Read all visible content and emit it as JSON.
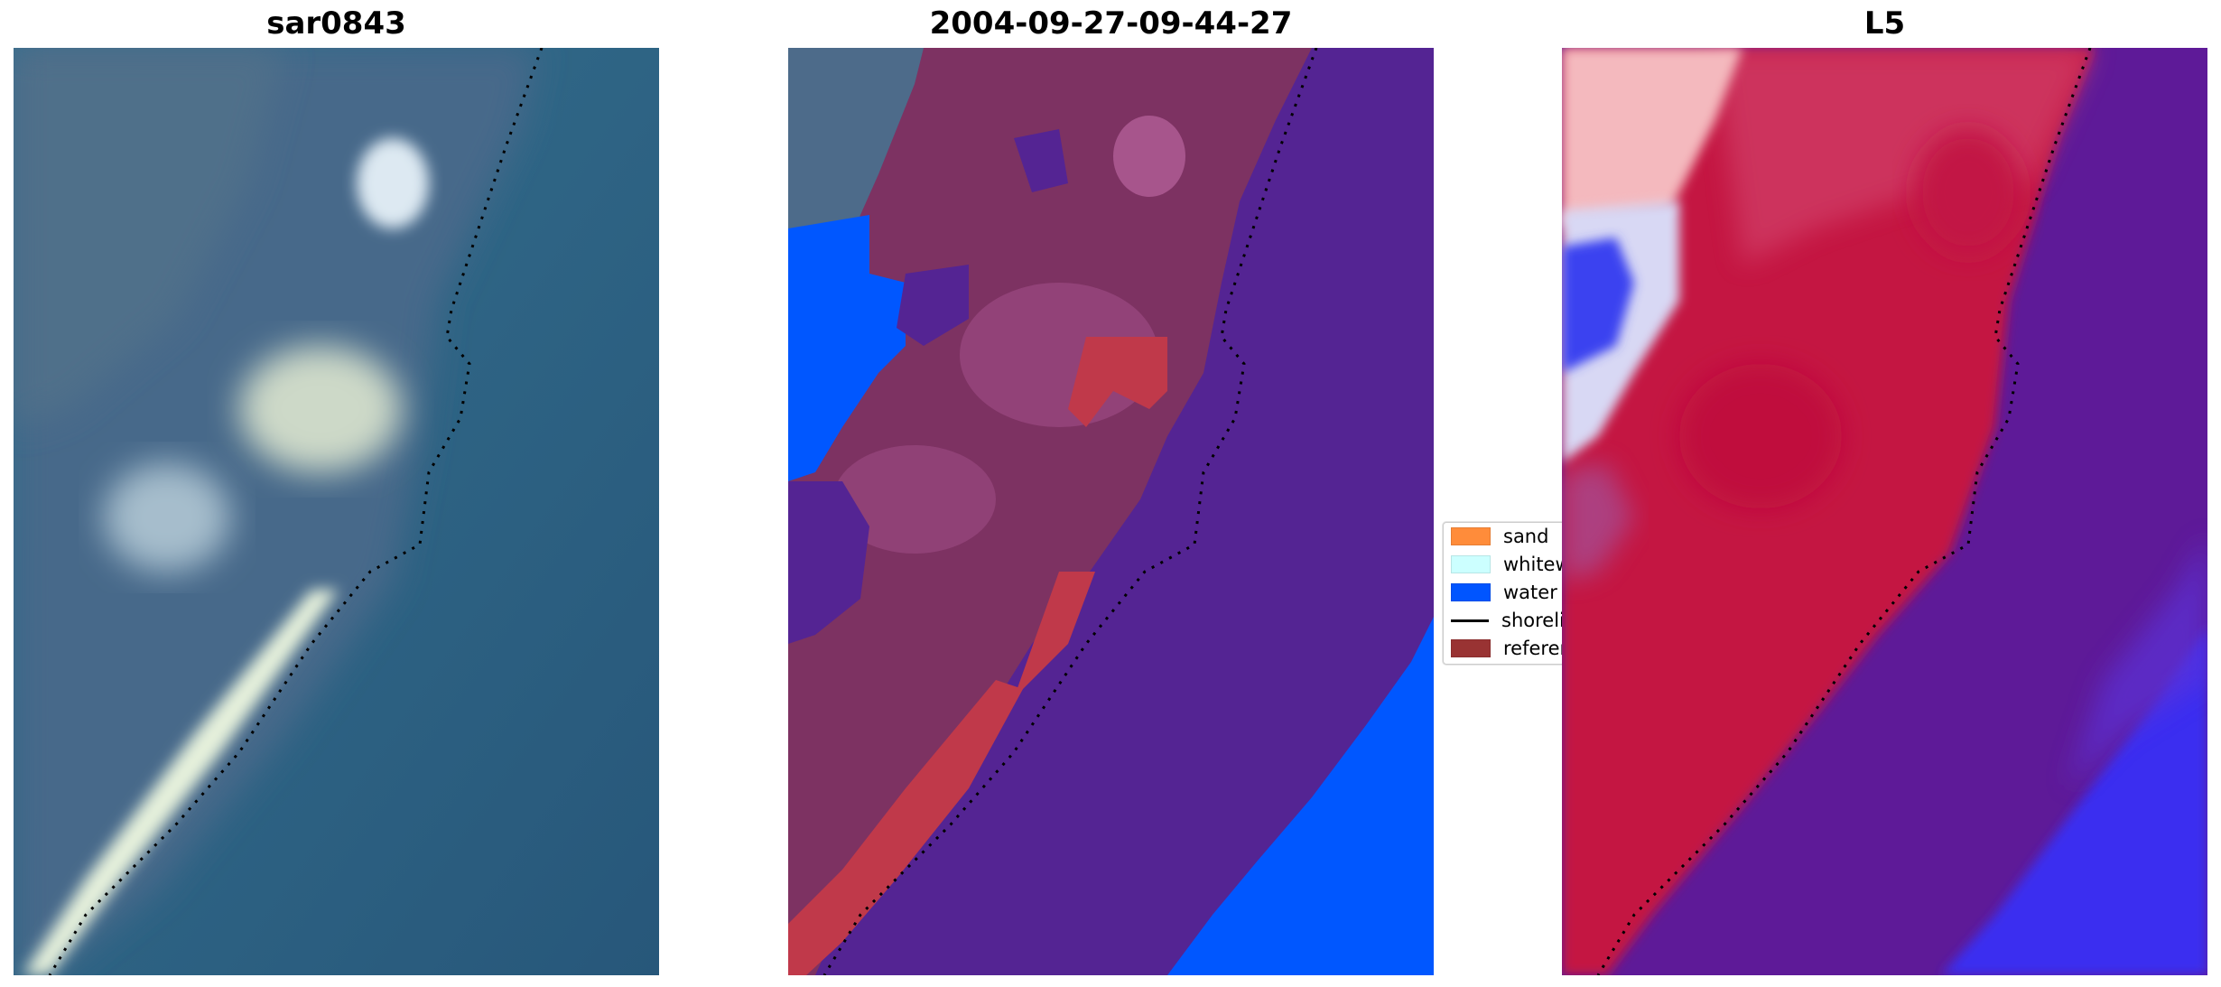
{
  "panels": [
    {
      "title": "sar0843",
      "kind": "rgb"
    },
    {
      "title": "2004-09-27-09-44-27",
      "kind": "classified"
    },
    {
      "title": "L5",
      "kind": "index"
    }
  ],
  "legend": {
    "items": [
      {
        "label": "sand",
        "color": "#ff8c3a",
        "type": "patch"
      },
      {
        "label": "whitewater",
        "color": "#ccffff",
        "type": "patch"
      },
      {
        "label": "water",
        "color": "#0055ff",
        "type": "patch"
      },
      {
        "label": "shoreline",
        "color": "#000000",
        "type": "line"
      },
      {
        "label": "reference",
        "color": "#993333",
        "type": "patch"
      }
    ]
  },
  "colors": {
    "water_dark": "#2c5d7f",
    "land_blue": "#4a6e8c",
    "classified_purple": "#532393",
    "classified_red": "#c0394a",
    "classified_maroon": "#7d3060",
    "classified_water": "#0055ff",
    "index_red": "#c8123b",
    "index_purple": "#5d1898",
    "index_blue": "#3a2ff0"
  }
}
